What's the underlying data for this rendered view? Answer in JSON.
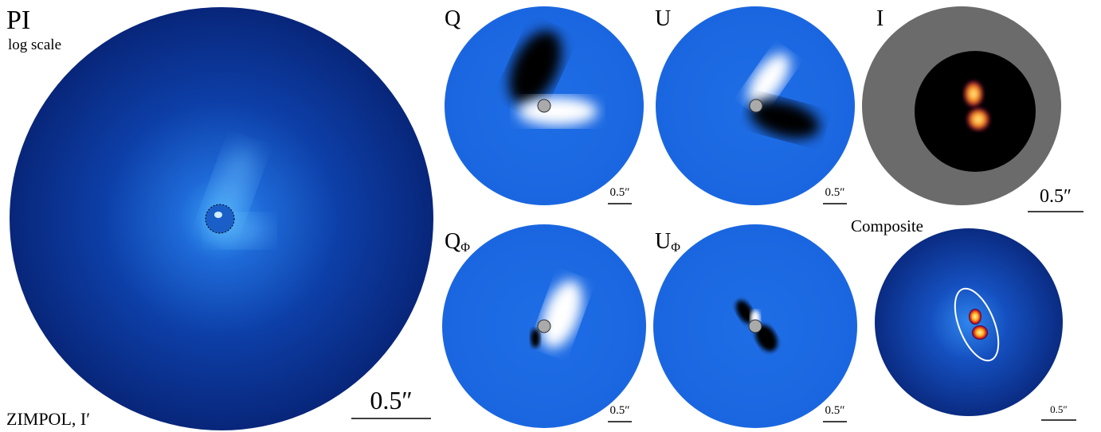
{
  "panels": [
    {
      "label": "PI",
      "sublabel": "log scale",
      "footer": "ZIMPOL, I′",
      "scale_bar": "0.5″"
    },
    {
      "label": "Q",
      "scale_bar": "0.5″"
    },
    {
      "label": "U",
      "scale_bar": "0.5″"
    },
    {
      "label": "I",
      "scale_bar": "0.5″"
    },
    {
      "label": "Q",
      "subscript": "Φ",
      "scale_bar": "0.5″"
    },
    {
      "label": "U",
      "subscript": "Φ",
      "scale_bar": "0.5″"
    },
    {
      "label": "Composite",
      "scale_bar": "0.5″"
    }
  ]
}
